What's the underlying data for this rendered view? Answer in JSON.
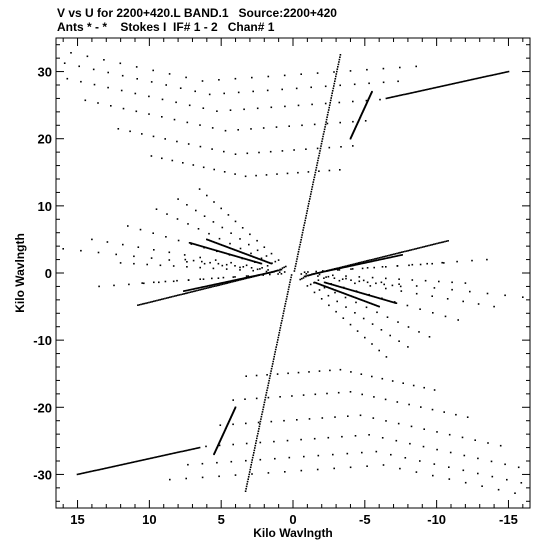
{
  "header": {
    "line1": "V vs U for 2200+420.L BAND.1   Source:2200+420",
    "line2": "Ants * - *    Stokes I  IF# 1 - 2   Chan# 1"
  },
  "chart_data": {
    "type": "scatter",
    "title": "V vs U for 2200+420.L BAND.1   Source:2200+420",
    "subtitle": "Ants * - *    Stokes I  IF# 1 - 2   Chan# 1",
    "xlabel": "Kilo Wavlngth",
    "ylabel": "Kilo Wavlngth",
    "xlim": [
      16.5,
      -16.5
    ],
    "ylim": [
      -35,
      35
    ],
    "x_ticks": [
      15,
      10,
      5,
      0,
      -5,
      -10,
      -15
    ],
    "y_ticks": [
      30,
      20,
      10,
      0,
      -10,
      -20,
      -30
    ],
    "x_tick_labels": [
      "15",
      "10",
      "5",
      "0",
      "-5",
      "-10",
      "-15"
    ],
    "y_tick_labels": [
      "30",
      "20",
      "10",
      "0",
      "-10",
      "-20",
      "-30"
    ],
    "grid": false,
    "legend": "none",
    "marker_color": "#000000",
    "tracks": [
      {
        "u": [
          -0.1,
          -3.3
        ],
        "v": [
          0.3,
          32.5
        ]
      },
      {
        "u": [
          0.1,
          3.3
        ],
        "v": [
          -0.3,
          -32.5
        ]
      },
      {
        "u": [
          -1.3,
          -7.6
        ],
        "v": [
          -0.2,
          2.7
        ]
      },
      {
        "u": [
          1.3,
          7.6
        ],
        "v": [
          0.2,
          -2.7
        ]
      },
      {
        "u": [
          -0.8,
          -10.8
        ],
        "v": [
          -0.5,
          4.8
        ]
      },
      {
        "u": [
          0.8,
          10.8
        ],
        "v": [
          0.5,
          -4.8
        ]
      },
      {
        "u": [
          -1.5,
          -6.0
        ],
        "v": [
          -1.4,
          -5.0
        ]
      },
      {
        "u": [
          1.5,
          6.0
        ],
        "v": [
          1.4,
          5.0
        ]
      },
      {
        "u": [
          -2.2,
          -7.2
        ],
        "v": [
          -1.4,
          -4.5
        ]
      },
      {
        "u": [
          2.2,
          7.2
        ],
        "v": [
          1.4,
          4.5
        ]
      },
      {
        "u": [
          -4.0,
          -5.5
        ],
        "v": [
          20.0,
          27.0
        ]
      },
      {
        "u": [
          4.0,
          5.5
        ],
        "v": [
          -20.0,
          -27.0
        ]
      },
      {
        "u": [
          -6.5,
          -15.0
        ],
        "v": [
          26.0,
          30.0
        ]
      },
      {
        "u": [
          6.5,
          15.0
        ],
        "v": [
          -26.0,
          -30.0
        ]
      }
    ],
    "arcs": [
      {
        "center_u": 3.3,
        "center_v": 14.4,
        "half_width": 4.1,
        "sag": 2.0,
        "count": 18
      },
      {
        "center_u": 4.0,
        "center_v": 17.7,
        "half_width": 5.1,
        "sag": 2.5,
        "count": 20
      },
      {
        "center_u": 4.7,
        "center_v": 21.2,
        "half_width": 6.1,
        "sag": 3.0,
        "count": 22
      },
      {
        "center_u": 5.3,
        "center_v": 24.1,
        "half_width": 7.1,
        "sag": 3.5,
        "count": 24
      },
      {
        "center_u": 5.8,
        "center_v": 26.6,
        "half_width": 8.2,
        "sag": 4.0,
        "count": 26
      },
      {
        "center_u": 6.3,
        "center_v": 28.6,
        "half_width": 9.3,
        "sag": 4.5,
        "count": 26
      },
      {
        "center_u": -3.3,
        "center_v": -14.4,
        "half_width": 4.1,
        "sag": 2.0,
        "count": 18
      },
      {
        "center_u": -4.0,
        "center_v": -17.7,
        "half_width": 5.1,
        "sag": 2.5,
        "count": 20
      },
      {
        "center_u": -4.7,
        "center_v": -21.2,
        "half_width": 6.1,
        "sag": 3.0,
        "count": 22
      },
      {
        "center_u": -5.3,
        "center_v": -24.1,
        "half_width": 7.1,
        "sag": 3.5,
        "count": 24
      },
      {
        "center_u": -5.8,
        "center_v": -26.6,
        "half_width": 8.2,
        "sag": 4.0,
        "count": 26
      },
      {
        "center_u": -6.3,
        "center_v": -28.6,
        "half_width": 9.3,
        "sag": 4.5,
        "count": 26
      }
    ],
    "fan": {
      "rays": [
        {
          "u": 16.0,
          "v": 3.6
        },
        {
          "u": 14.0,
          "v": 5.0
        },
        {
          "u": 11.5,
          "v": 7.0
        },
        {
          "u": 9.5,
          "v": 9.5
        },
        {
          "u": 8.0,
          "v": 11.0
        },
        {
          "u": 6.5,
          "v": 12.5
        },
        {
          "u": 12.0,
          "v": 1.5
        },
        {
          "u": 10.5,
          "v": -1.5
        },
        {
          "u": 13.5,
          "v": -2.0
        },
        {
          "u": 7.5,
          "v": 2.0
        }
      ],
      "points_per_ray": 13
    }
  }
}
